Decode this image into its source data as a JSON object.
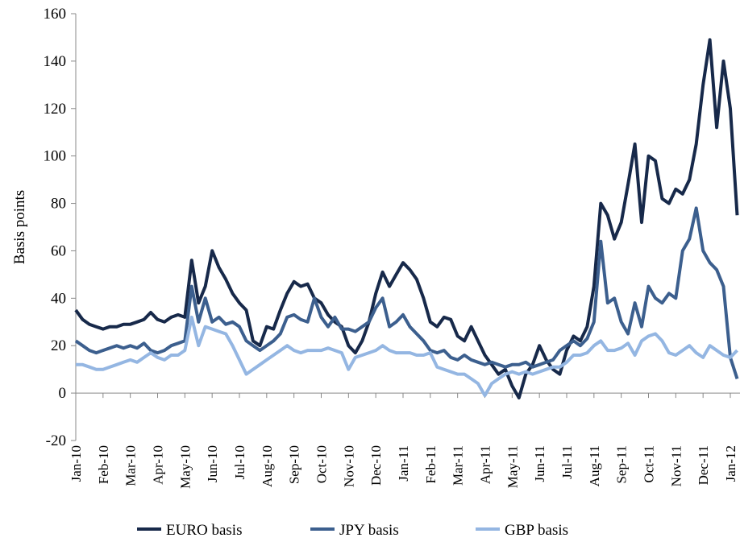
{
  "chart_data": {
    "type": "line",
    "ylabel": "Basis points",
    "categories": [
      "Jan-10",
      null,
      null,
      null,
      "Feb-10",
      null,
      null,
      null,
      "Mar-10",
      null,
      null,
      null,
      "Apr-10",
      null,
      null,
      null,
      "May-10",
      null,
      null,
      null,
      "Jun-10",
      null,
      null,
      null,
      "Jul-10",
      null,
      null,
      null,
      "Aug-10",
      null,
      null,
      null,
      "Sep-10",
      null,
      null,
      null,
      "Oct-10",
      null,
      null,
      null,
      "Nov-10",
      null,
      null,
      null,
      "Dec-10",
      null,
      null,
      null,
      "Jan-11",
      null,
      null,
      null,
      "Feb-11",
      null,
      null,
      null,
      "Mar-11",
      null,
      null,
      null,
      "Apr-11",
      null,
      null,
      null,
      "May-11",
      null,
      null,
      null,
      "Jun-11",
      null,
      null,
      null,
      "Jul-11",
      null,
      null,
      null,
      "Aug-11",
      null,
      null,
      null,
      "Sep-11",
      null,
      null,
      null,
      "Oct-11",
      null,
      null,
      null,
      "Nov-11",
      null,
      null,
      null,
      "Dec-11",
      null,
      null,
      null,
      "Jan-12",
      null
    ],
    "series": [
      {
        "name": "EURO basis",
        "color": "#17294a",
        "values": [
          35,
          31,
          29,
          28,
          27,
          28,
          28,
          29,
          29,
          30,
          31,
          34,
          31,
          30,
          32,
          33,
          32,
          56,
          38,
          45,
          60,
          53,
          48,
          42,
          38,
          35,
          22,
          20,
          28,
          27,
          35,
          42,
          47,
          45,
          46,
          40,
          38,
          33,
          30,
          28,
          20,
          17,
          22,
          30,
          42,
          51,
          45,
          50,
          55,
          52,
          48,
          40,
          30,
          28,
          32,
          31,
          24,
          22,
          28,
          22,
          16,
          12,
          8,
          10,
          3,
          -2,
          8,
          12,
          20,
          14,
          10,
          8,
          18,
          24,
          22,
          28,
          45,
          80,
          75,
          65,
          72,
          88,
          105,
          72,
          100,
          98,
          82,
          80,
          86,
          84,
          90,
          105,
          130,
          149,
          112,
          140,
          120,
          75
        ]
      },
      {
        "name": "JPY basis",
        "color": "#3c5f8e",
        "values": [
          22,
          20,
          18,
          17,
          18,
          19,
          20,
          19,
          20,
          19,
          21,
          18,
          17,
          18,
          20,
          21,
          22,
          45,
          30,
          40,
          30,
          32,
          29,
          30,
          28,
          22,
          20,
          18,
          20,
          22,
          25,
          32,
          33,
          31,
          30,
          40,
          32,
          28,
          32,
          27,
          27,
          26,
          28,
          30,
          36,
          40,
          28,
          30,
          33,
          28,
          25,
          22,
          18,
          17,
          18,
          15,
          14,
          16,
          14,
          13,
          12,
          13,
          12,
          11,
          12,
          12,
          13,
          11,
          12,
          13,
          14,
          18,
          20,
          22,
          20,
          23,
          30,
          64,
          38,
          40,
          30,
          25,
          38,
          28,
          45,
          40,
          38,
          42,
          40,
          60,
          65,
          78,
          60,
          55,
          52,
          45,
          15,
          6
        ]
      },
      {
        "name": "GBP basis",
        "color": "#94b6e2",
        "values": [
          12,
          12,
          11,
          10,
          10,
          11,
          12,
          13,
          14,
          13,
          15,
          17,
          15,
          14,
          16,
          16,
          18,
          32,
          20,
          28,
          27,
          26,
          25,
          20,
          14,
          8,
          10,
          12,
          14,
          16,
          18,
          20,
          18,
          17,
          18,
          18,
          18,
          19,
          18,
          17,
          10,
          15,
          16,
          17,
          18,
          20,
          18,
          17,
          17,
          17,
          16,
          16,
          17,
          11,
          10,
          9,
          8,
          8,
          6,
          4,
          -1,
          4,
          6,
          8,
          9,
          8,
          9,
          8,
          9,
          10,
          11,
          11,
          13,
          16,
          16,
          17,
          20,
          22,
          18,
          18,
          19,
          21,
          16,
          22,
          24,
          25,
          22,
          17,
          16,
          18,
          20,
          17,
          15,
          20,
          18,
          16,
          15,
          18
        ]
      }
    ],
    "ylim": [
      -20,
      160
    ],
    "yticks": [
      -20,
      0,
      20,
      40,
      60,
      80,
      100,
      120,
      140,
      160
    ],
    "legend": "bottom"
  }
}
